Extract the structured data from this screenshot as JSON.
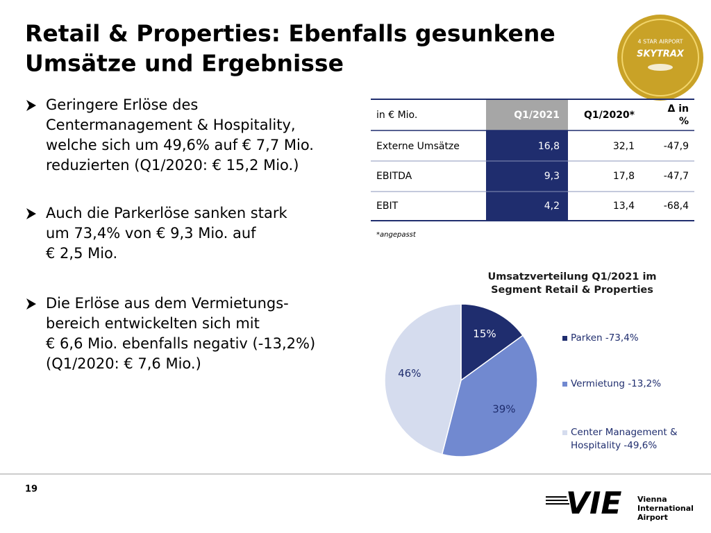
{
  "header": {
    "title_lines": [
      "Retail & Properties: Ebenfalls gesunkene",
      "Umsätze und Ergebnisse"
    ]
  },
  "badge": {
    "top": "4 STAR AIRPORT",
    "name": "SKYTRAX"
  },
  "bullets": [
    {
      "lines": [
        "Geringere Erlöse des",
        "Centermanagement & Hospitality,",
        "welche sich um 49,6% auf € 7,7 Mio.",
        "reduzierten (Q1/2020: € 15,2 Mio.)"
      ]
    },
    {
      "lines": [
        "Auch die Parkerlöse sanken stark",
        "um 73,4% von € 9,3 Mio. auf",
        "€ 2,5 Mio."
      ]
    },
    {
      "lines": [
        "Die Erlöse aus dem Vermietungs-",
        "bereich entwickelten sich mit",
        "€ 6,6 Mio. ebenfalls negativ (-13,2%)",
        "(Q1/2020: € 7,6 Mio.)"
      ]
    }
  ],
  "table": {
    "header": [
      "in € Mio.",
      "Q1/2021",
      "Q1/2020*",
      [
        "Δ in",
        "%"
      ]
    ],
    "rows": [
      [
        "Externe Umsätze",
        "16,8",
        "32,1",
        "-47,9"
      ],
      [
        "EBITDA",
        "9,3",
        "17,8",
        "-47,7"
      ],
      [
        "EBIT",
        "4,2",
        "13,4",
        "-68,4"
      ]
    ],
    "footnote": "*angepasst"
  },
  "chart_data": {
    "type": "pie",
    "title": "Umsatzverteilung Q1/2021 im Segment Retail & Properties",
    "categories": [
      "Parken -73,4%",
      "Vermietung -13,2%",
      "Center Management & Hospitality -49,6%"
    ],
    "values": [
      15,
      39,
      46
    ],
    "value_labels": [
      "15%",
      "39%",
      "46%"
    ],
    "colors": [
      "#1f2d6e",
      "#7189d0",
      "#d5dcee"
    ]
  },
  "footer": {
    "page": "19",
    "logo": "VIE",
    "logo_lines": [
      "Vienna",
      "International",
      "Airport"
    ]
  }
}
